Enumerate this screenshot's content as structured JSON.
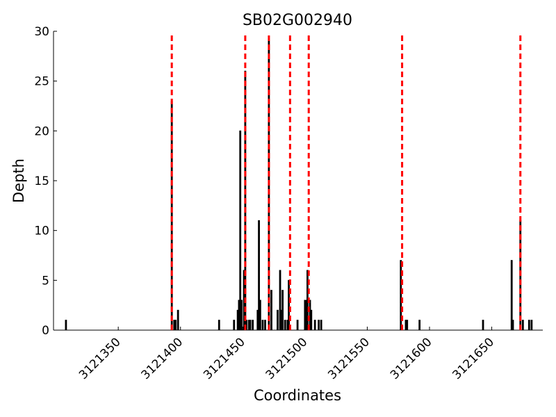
{
  "chart_data": {
    "type": "bar",
    "title": "SB02G002940",
    "x_label": "Coordinates",
    "y_label": "Depth",
    "x": [
      3121308,
      3121393,
      3121395,
      3121396,
      3121398,
      3121431,
      3121443,
      3121446,
      3121447,
      3121448,
      3121449,
      3121451,
      3121452,
      3121453,
      3121455,
      3121456,
      3121458,
      3121462,
      3121463,
      3121464,
      3121466,
      3121468,
      3121471,
      3121473,
      3121478,
      3121480,
      3121481,
      3121482,
      3121484,
      3121486,
      3121487,
      3121494,
      3121500,
      3121501,
      3121502,
      3121504,
      3121505,
      3121508,
      3121511,
      3121513,
      3121577,
      3121581,
      3121582,
      3121592,
      3121643,
      3121666,
      3121667,
      3121673,
      3121675,
      3121680,
      3121682
    ],
    "values": [
      1,
      23,
      1,
      1,
      2,
      1,
      1,
      2,
      3,
      20,
      3,
      6,
      26,
      1,
      1,
      1,
      1,
      2,
      11,
      3,
      1,
      1,
      29,
      4,
      2,
      6,
      2,
      4,
      1,
      1,
      5,
      1,
      3,
      3,
      6,
      3,
      2,
      1,
      1,
      1,
      7,
      1,
      1,
      1,
      1,
      7,
      1,
      11,
      1,
      1,
      1
    ],
    "color": "#000000",
    "vlines": {
      "x": [
        3121393,
        3121452,
        3121471,
        3121488,
        3121503,
        3121578,
        3121673
      ],
      "color": "#ff0000"
    },
    "xlim": [
      3121298,
      3121691
    ],
    "xticks": [
      3121350,
      3121400,
      3121450,
      3121500,
      3121550,
      3121600,
      3121650
    ],
    "ylim": [
      0,
      30
    ],
    "yticks": [
      0,
      5,
      10,
      15,
      20,
      25,
      30
    ]
  }
}
